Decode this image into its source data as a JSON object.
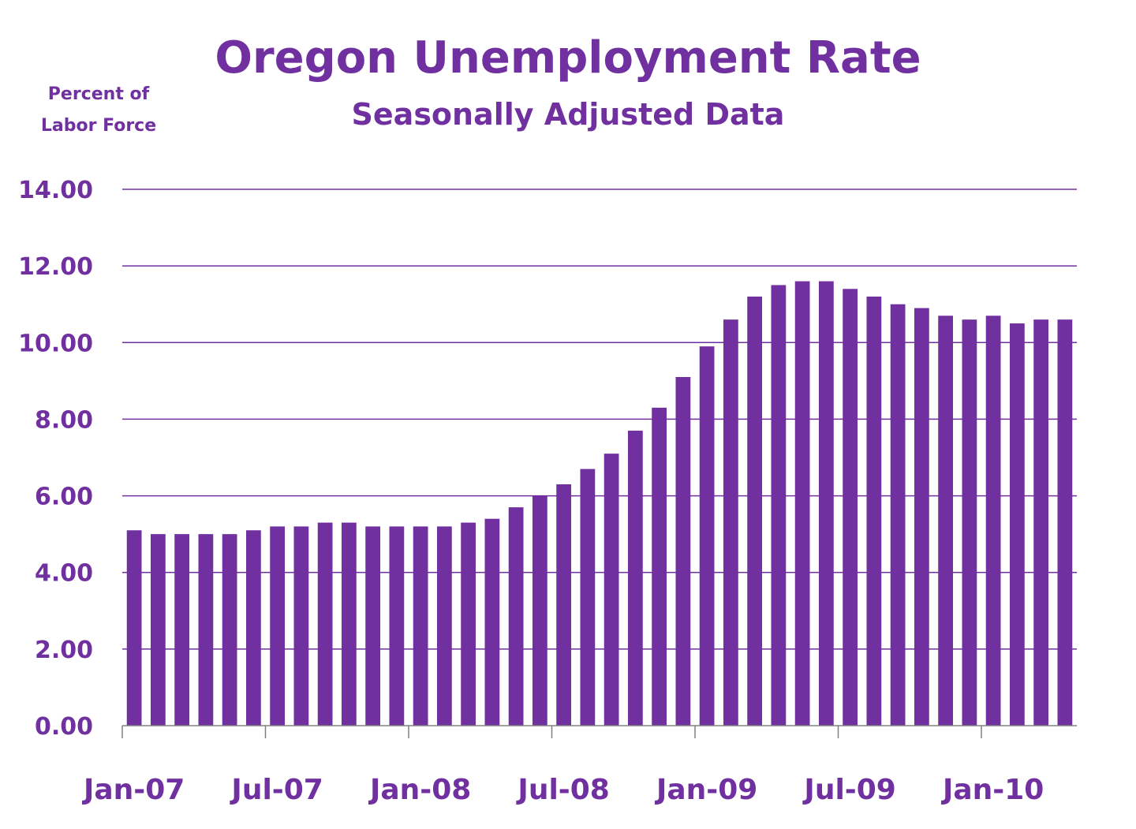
{
  "chart_data": {
    "type": "bar",
    "title": "Oregon Unemployment Rate",
    "subtitle": "Seasonally Adjusted Data",
    "ylabel_lines": [
      "Percent of",
      "Labor Force"
    ],
    "xlabel": "",
    "ylim": [
      0,
      14
    ],
    "y_ticks": [
      "0.00",
      "2.00",
      "4.00",
      "6.00",
      "8.00",
      "10.00",
      "12.00",
      "14.00"
    ],
    "x_tick_labels": [
      "Jan-07",
      "Jul-07",
      "Jan-08",
      "Jul-08",
      "Jan-09",
      "Jul-09",
      "Jan-10"
    ],
    "x_tick_every": 6,
    "grid": true,
    "legend": "none",
    "colors": {
      "bar": "#7030a0",
      "grid": "#7030a0",
      "text": "#7030a0"
    },
    "categories": [
      "Jan-07",
      "Feb-07",
      "Mar-07",
      "Apr-07",
      "May-07",
      "Jun-07",
      "Jul-07",
      "Aug-07",
      "Sep-07",
      "Oct-07",
      "Nov-07",
      "Dec-07",
      "Jan-08",
      "Feb-08",
      "Mar-08",
      "Apr-08",
      "May-08",
      "Jun-08",
      "Jul-08",
      "Aug-08",
      "Sep-08",
      "Oct-08",
      "Nov-08",
      "Dec-08",
      "Jan-09",
      "Feb-09",
      "Mar-09",
      "Apr-09",
      "May-09",
      "Jun-09",
      "Jul-09",
      "Aug-09",
      "Sep-09",
      "Oct-09",
      "Nov-09",
      "Dec-09",
      "Jan-10",
      "Feb-10",
      "Mar-10",
      "Apr-10"
    ],
    "values": [
      5.1,
      5.0,
      5.0,
      5.0,
      5.0,
      5.1,
      5.2,
      5.2,
      5.3,
      5.3,
      5.2,
      5.2,
      5.2,
      5.2,
      5.3,
      5.4,
      5.7,
      6.0,
      6.3,
      6.7,
      7.1,
      7.7,
      8.3,
      9.1,
      9.9,
      10.6,
      11.2,
      11.5,
      11.6,
      11.6,
      11.4,
      11.2,
      11.0,
      10.9,
      10.7,
      10.6,
      10.7,
      10.5,
      10.6,
      10.6
    ]
  }
}
